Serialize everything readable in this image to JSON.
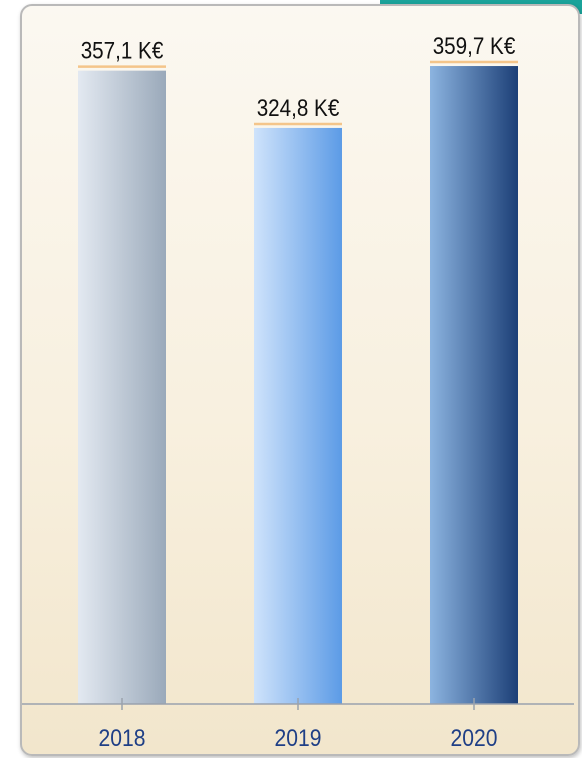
{
  "chart_data": {
    "type": "bar",
    "categories": [
      "2018",
      "2019",
      "2020"
    ],
    "values": [
      357.1,
      324.8,
      359.7
    ],
    "value_labels": [
      "357,1 K€",
      "324,8 K€",
      "359,7 K€"
    ],
    "title": "",
    "xlabel": "",
    "ylabel": "",
    "ylim": [
      0,
      371
    ],
    "grid": false,
    "legend": "none"
  },
  "colors": {
    "accent": "#1aa39a",
    "panel_border": "#b9b9b9",
    "label_underline": "#f4c58a",
    "axis": "#9aa2ad",
    "category_text": "#1f3f86",
    "value_text": "#111111",
    "bar_gradients": [
      [
        "#e3e9f1",
        "#9aa9ba"
      ],
      [
        "#cfe3fb",
        "#5c9be6"
      ],
      [
        "#8cb4e0",
        "#1c3f77"
      ]
    ]
  }
}
